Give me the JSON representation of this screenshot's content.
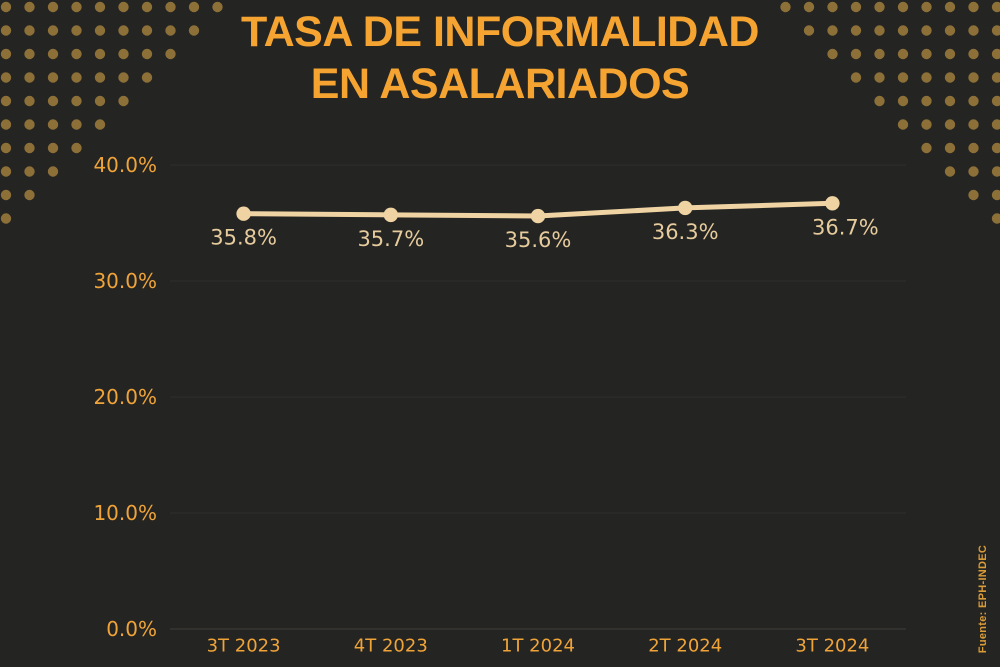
{
  "page": {
    "title_line1": "TASA DE INFORMALIDAD",
    "title_line2": "EN ASALARIADOS",
    "source": "Fuente: EPH-INDEC"
  },
  "colors": {
    "background": "#242423",
    "title": "#F6A431",
    "axis_label": "#F0A438",
    "line": "#EFD3A2",
    "point": "#EFD3A2",
    "value_label": "#E6CB9C",
    "grid": "#2E2E2C",
    "axis_line": "#413E37",
    "corner_dot": "#8C7038",
    "source_text": "#DA9C37"
  },
  "chart_data": {
    "type": "line",
    "title": "TASA DE INFORMALIDAD EN ASALARIADOS",
    "categories": [
      "3T 2023",
      "4T 2023",
      "1T 2024",
      "2T 2024",
      "3T 2024"
    ],
    "series": [
      {
        "name": "Tasa de informalidad en asalariados",
        "values": [
          35.8,
          35.7,
          35.6,
          36.3,
          36.7
        ]
      }
    ],
    "value_labels": [
      "35.8%",
      "35.7%",
      "35.6%",
      "36.3%",
      "36.7%"
    ],
    "yticks": [
      0,
      10,
      20,
      30,
      40
    ],
    "ytick_labels": [
      "0.0%",
      "10.0%",
      "20.0%",
      "30.0%",
      "40.0%"
    ],
    "ylim": [
      0,
      40
    ],
    "xlabel": "",
    "ylabel": "",
    "grid": "horizontal",
    "legend": "none",
    "source": "Fuente: EPH-INDEC"
  }
}
